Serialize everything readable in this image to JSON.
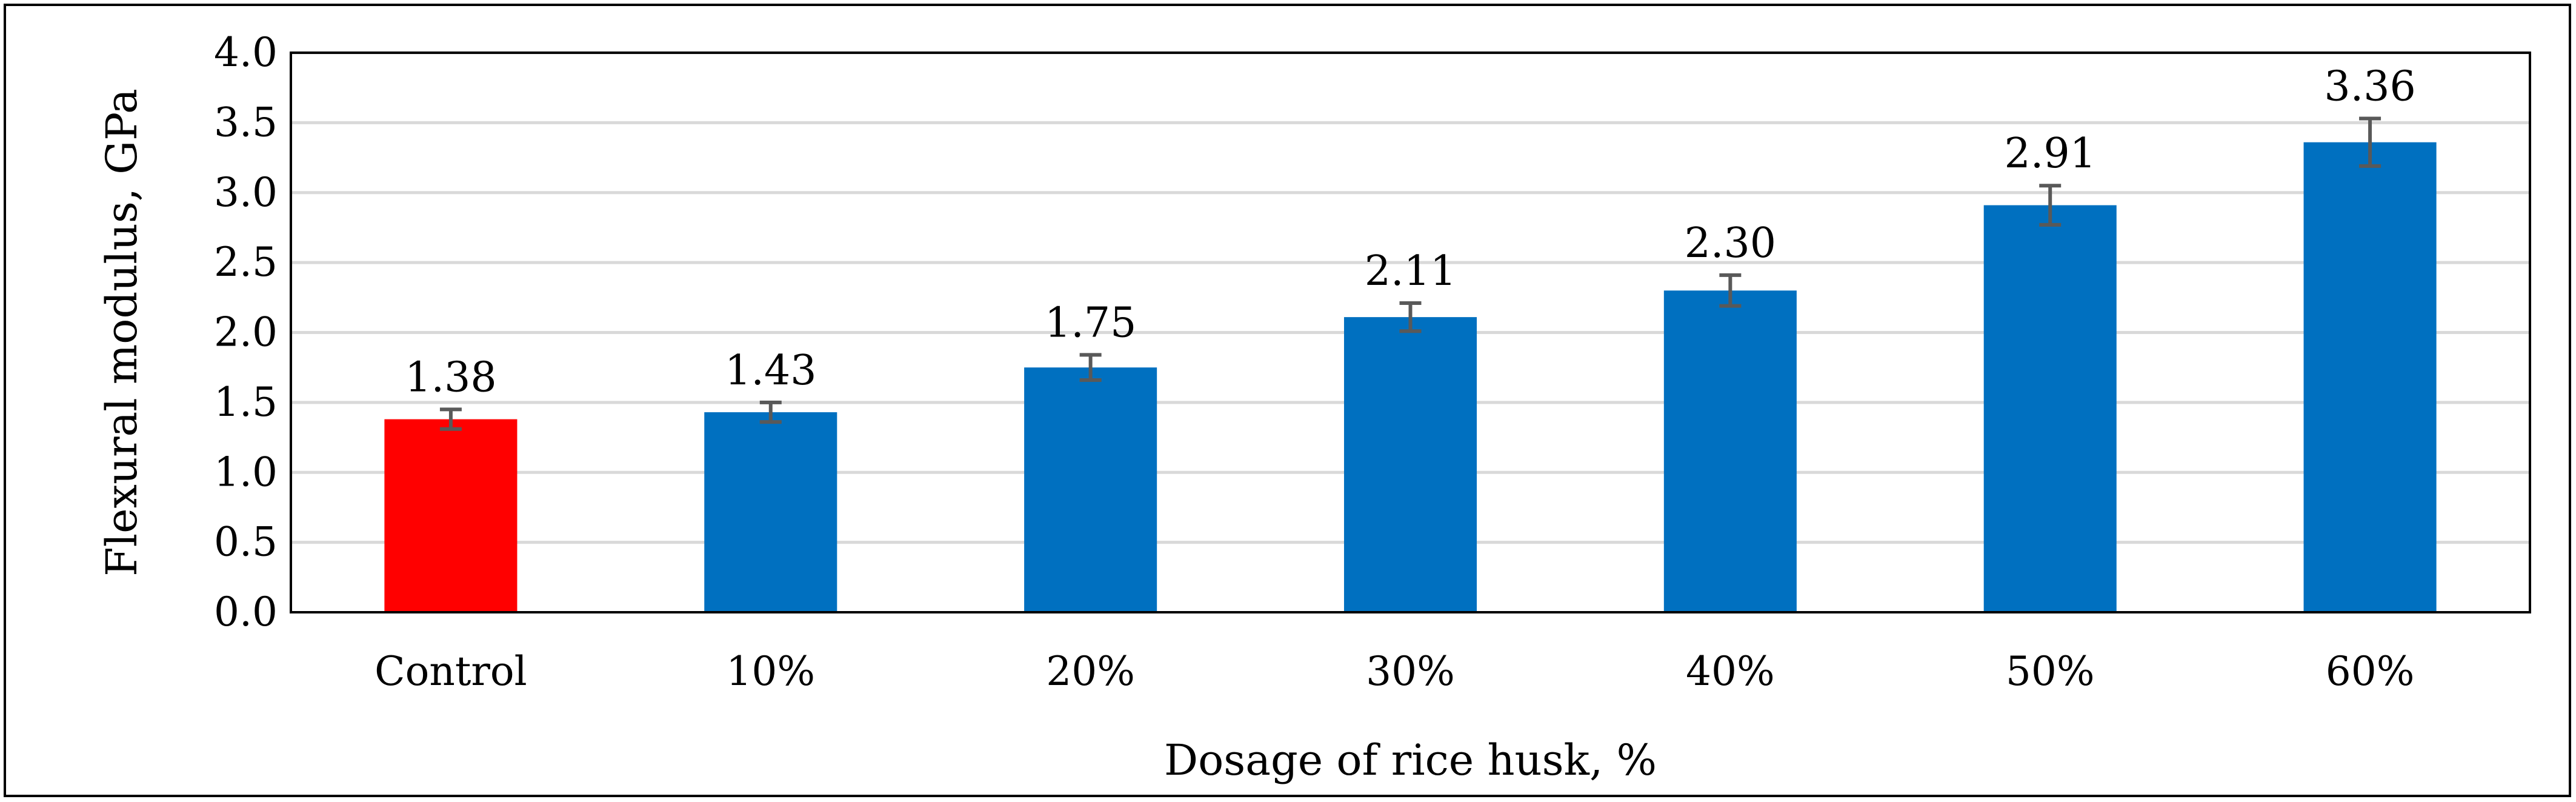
{
  "chart_data": {
    "type": "bar",
    "title": "",
    "xlabel": "Dosage of rice husk, %",
    "ylabel": "Flexural modulus, GPa",
    "categories": [
      "Control",
      "10%",
      "20%",
      "30%",
      "40%",
      "50%",
      "60%"
    ],
    "values": [
      1.38,
      1.43,
      1.75,
      2.11,
      2.3,
      2.91,
      3.36
    ],
    "value_labels": [
      "1.38",
      "1.43",
      "1.75",
      "2.11",
      "2.30",
      "2.91",
      "3.36"
    ],
    "error": [
      0.07,
      0.07,
      0.09,
      0.1,
      0.11,
      0.14,
      0.17
    ],
    "ylim": [
      0,
      4.0
    ],
    "yticks": [
      0.0,
      0.5,
      1.0,
      1.5,
      2.0,
      2.5,
      3.0,
      3.5,
      4.0
    ],
    "ytick_labels": [
      "0.0",
      "0.5",
      "1.0",
      "1.5",
      "2.0",
      "2.5",
      "3.0",
      "3.5",
      "4.0"
    ],
    "grid": true,
    "legend": "none",
    "colors": {
      "control_bar": "#ff0000",
      "bar": "#0070c0",
      "error_bar": "#595959",
      "gridline": "#d9d9d9",
      "axis": "#000000"
    }
  }
}
